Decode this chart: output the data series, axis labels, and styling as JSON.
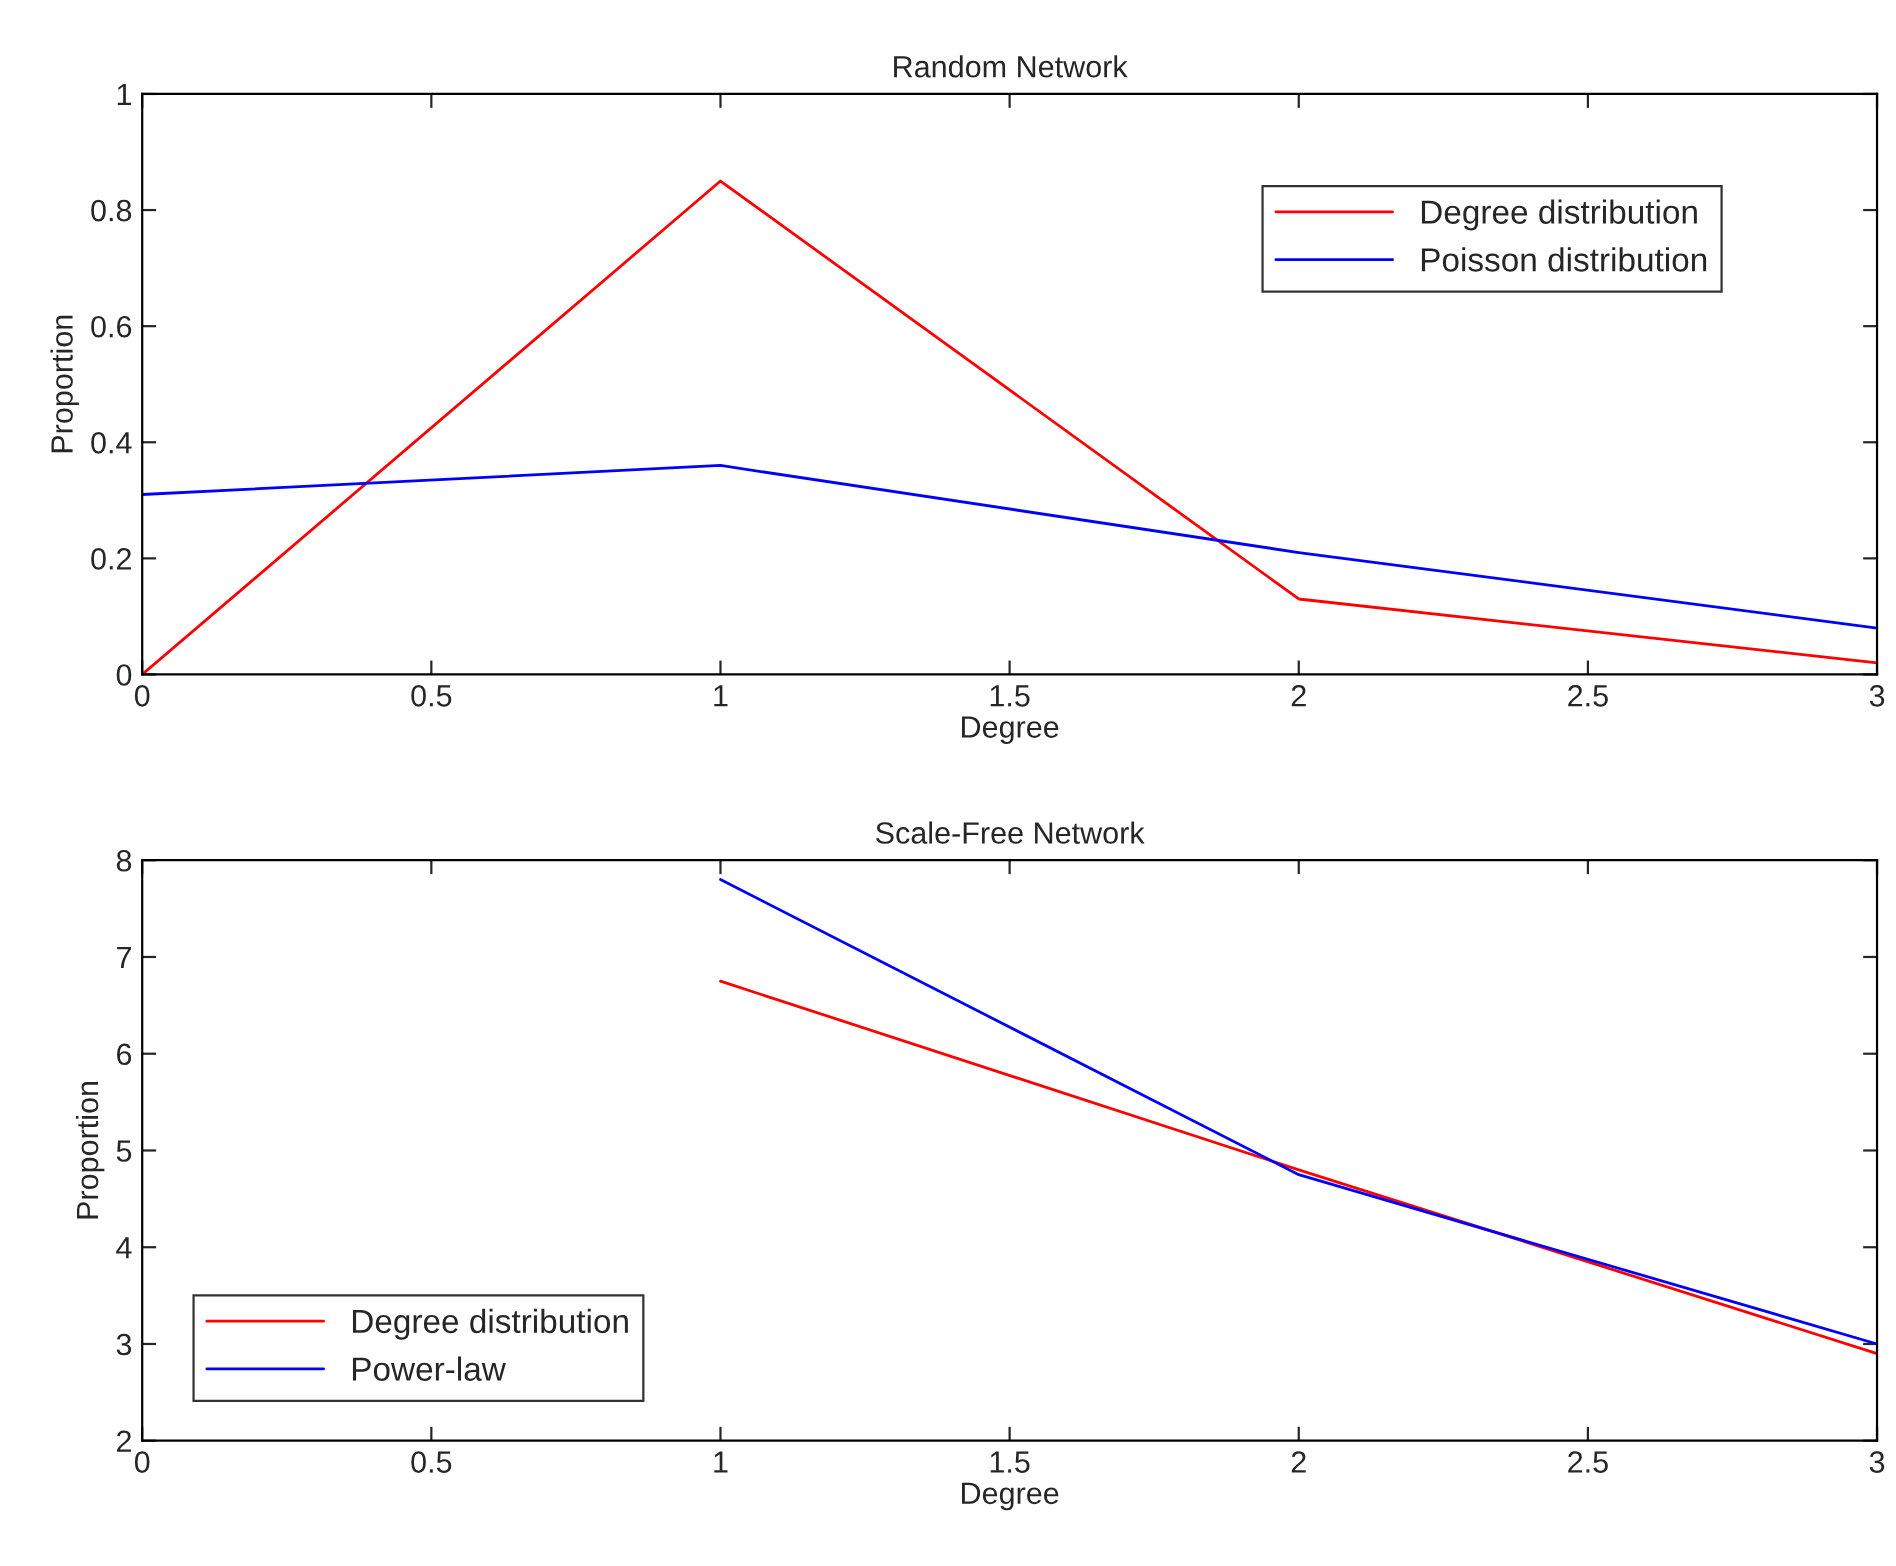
{
  "chart_data": [
    {
      "type": "line",
      "title": "Random Network",
      "xlabel": "Degree",
      "ylabel": "Proportion",
      "x": [
        0,
        1,
        2,
        3
      ],
      "series": [
        {
          "name": "Degree distribution",
          "color": "#ff0000",
          "values": [
            0,
            0.85,
            0.13,
            0.02
          ]
        },
        {
          "name": "Poisson distribution",
          "color": "#0000ff",
          "values": [
            0.31,
            0.36,
            0.21,
            0.08
          ]
        }
      ],
      "xlim": [
        0,
        3
      ],
      "xticks": [
        0,
        0.5,
        1,
        1.5,
        2,
        2.5,
        3
      ],
      "ylim": [
        0,
        1
      ],
      "yticks": [
        0,
        0.2,
        0.4,
        0.6,
        0.8,
        1
      ],
      "legend": "top right",
      "grid": false,
      "marker": "none",
      "line_style": "solid"
    },
    {
      "type": "line",
      "title": "Scale-Free Network",
      "xlabel": "Degree",
      "ylabel": "Proportion",
      "x": [
        1,
        2,
        3
      ],
      "series": [
        {
          "name": "Degree distribution",
          "color": "#ff0000",
          "values": [
            6.75,
            4.8,
            2.9
          ]
        },
        {
          "name": "Power-law",
          "color": "#0000ff",
          "values": [
            7.8,
            4.75,
            3.0
          ]
        }
      ],
      "xlim": [
        0,
        3
      ],
      "xticks": [
        0,
        0.5,
        1,
        1.5,
        2,
        2.5,
        3
      ],
      "ylim": [
        2,
        8
      ],
      "yticks": [
        2,
        3,
        4,
        5,
        6,
        7,
        8
      ],
      "legend": "bottom left",
      "grid": false,
      "marker": "none",
      "line_style": "solid"
    }
  ]
}
